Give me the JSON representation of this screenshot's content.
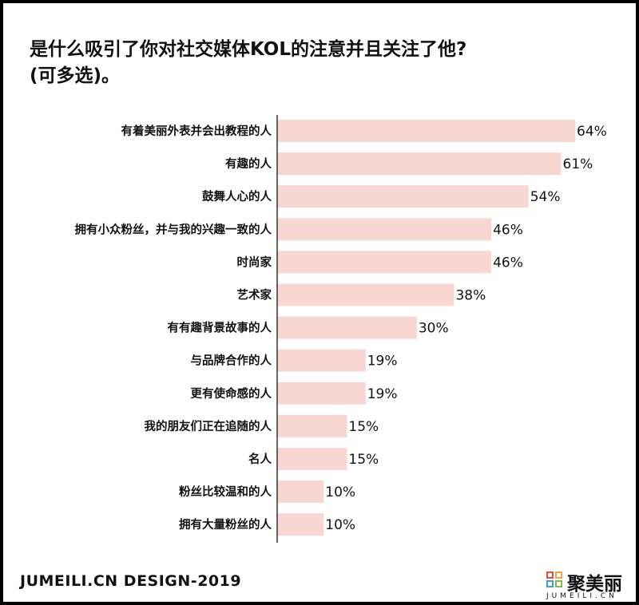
{
  "title": {
    "line1": "是什么吸引了你对社交媒体KOL的注意并且关注了他?",
    "line2": "(可多选)。"
  },
  "colors": {
    "bar": "#f8d7d3",
    "axis": "#333333",
    "text": "#111111"
  },
  "chart_data": {
    "type": "bar",
    "orientation": "horizontal",
    "categories": [
      "有着美丽外表并会出教程的人",
      "有趣的人",
      "鼓舞人心的人",
      "拥有小众粉丝，并与我的兴趣一致的人",
      "时尚家",
      "艺术家",
      "有有趣背景故事的人",
      "与品牌合作的人",
      "更有使命感的人",
      "我的朋友们正在追随的人",
      "名人",
      "粉丝比较温和的人",
      "拥有大量粉丝的人"
    ],
    "values": [
      64,
      61,
      54,
      46,
      46,
      38,
      30,
      19,
      19,
      15,
      15,
      10,
      10
    ],
    "value_labels": [
      "64%",
      "61%",
      "54%",
      "46%",
      "46%",
      "38%",
      "30%",
      "19%",
      "19%",
      "15%",
      "15%",
      "10%",
      "10%"
    ],
    "xlim": [
      0,
      64
    ],
    "grid": false,
    "legend": "none"
  },
  "footer": {
    "left": "JUMEILI.CN DESIGN-2019",
    "logo_name": "聚美丽",
    "logo_sub": "JUMEILI.CN",
    "logo_colors": [
      "#e94b3c",
      "#f2a33a",
      "#3aa0d8",
      "#7bbf4b"
    ]
  }
}
